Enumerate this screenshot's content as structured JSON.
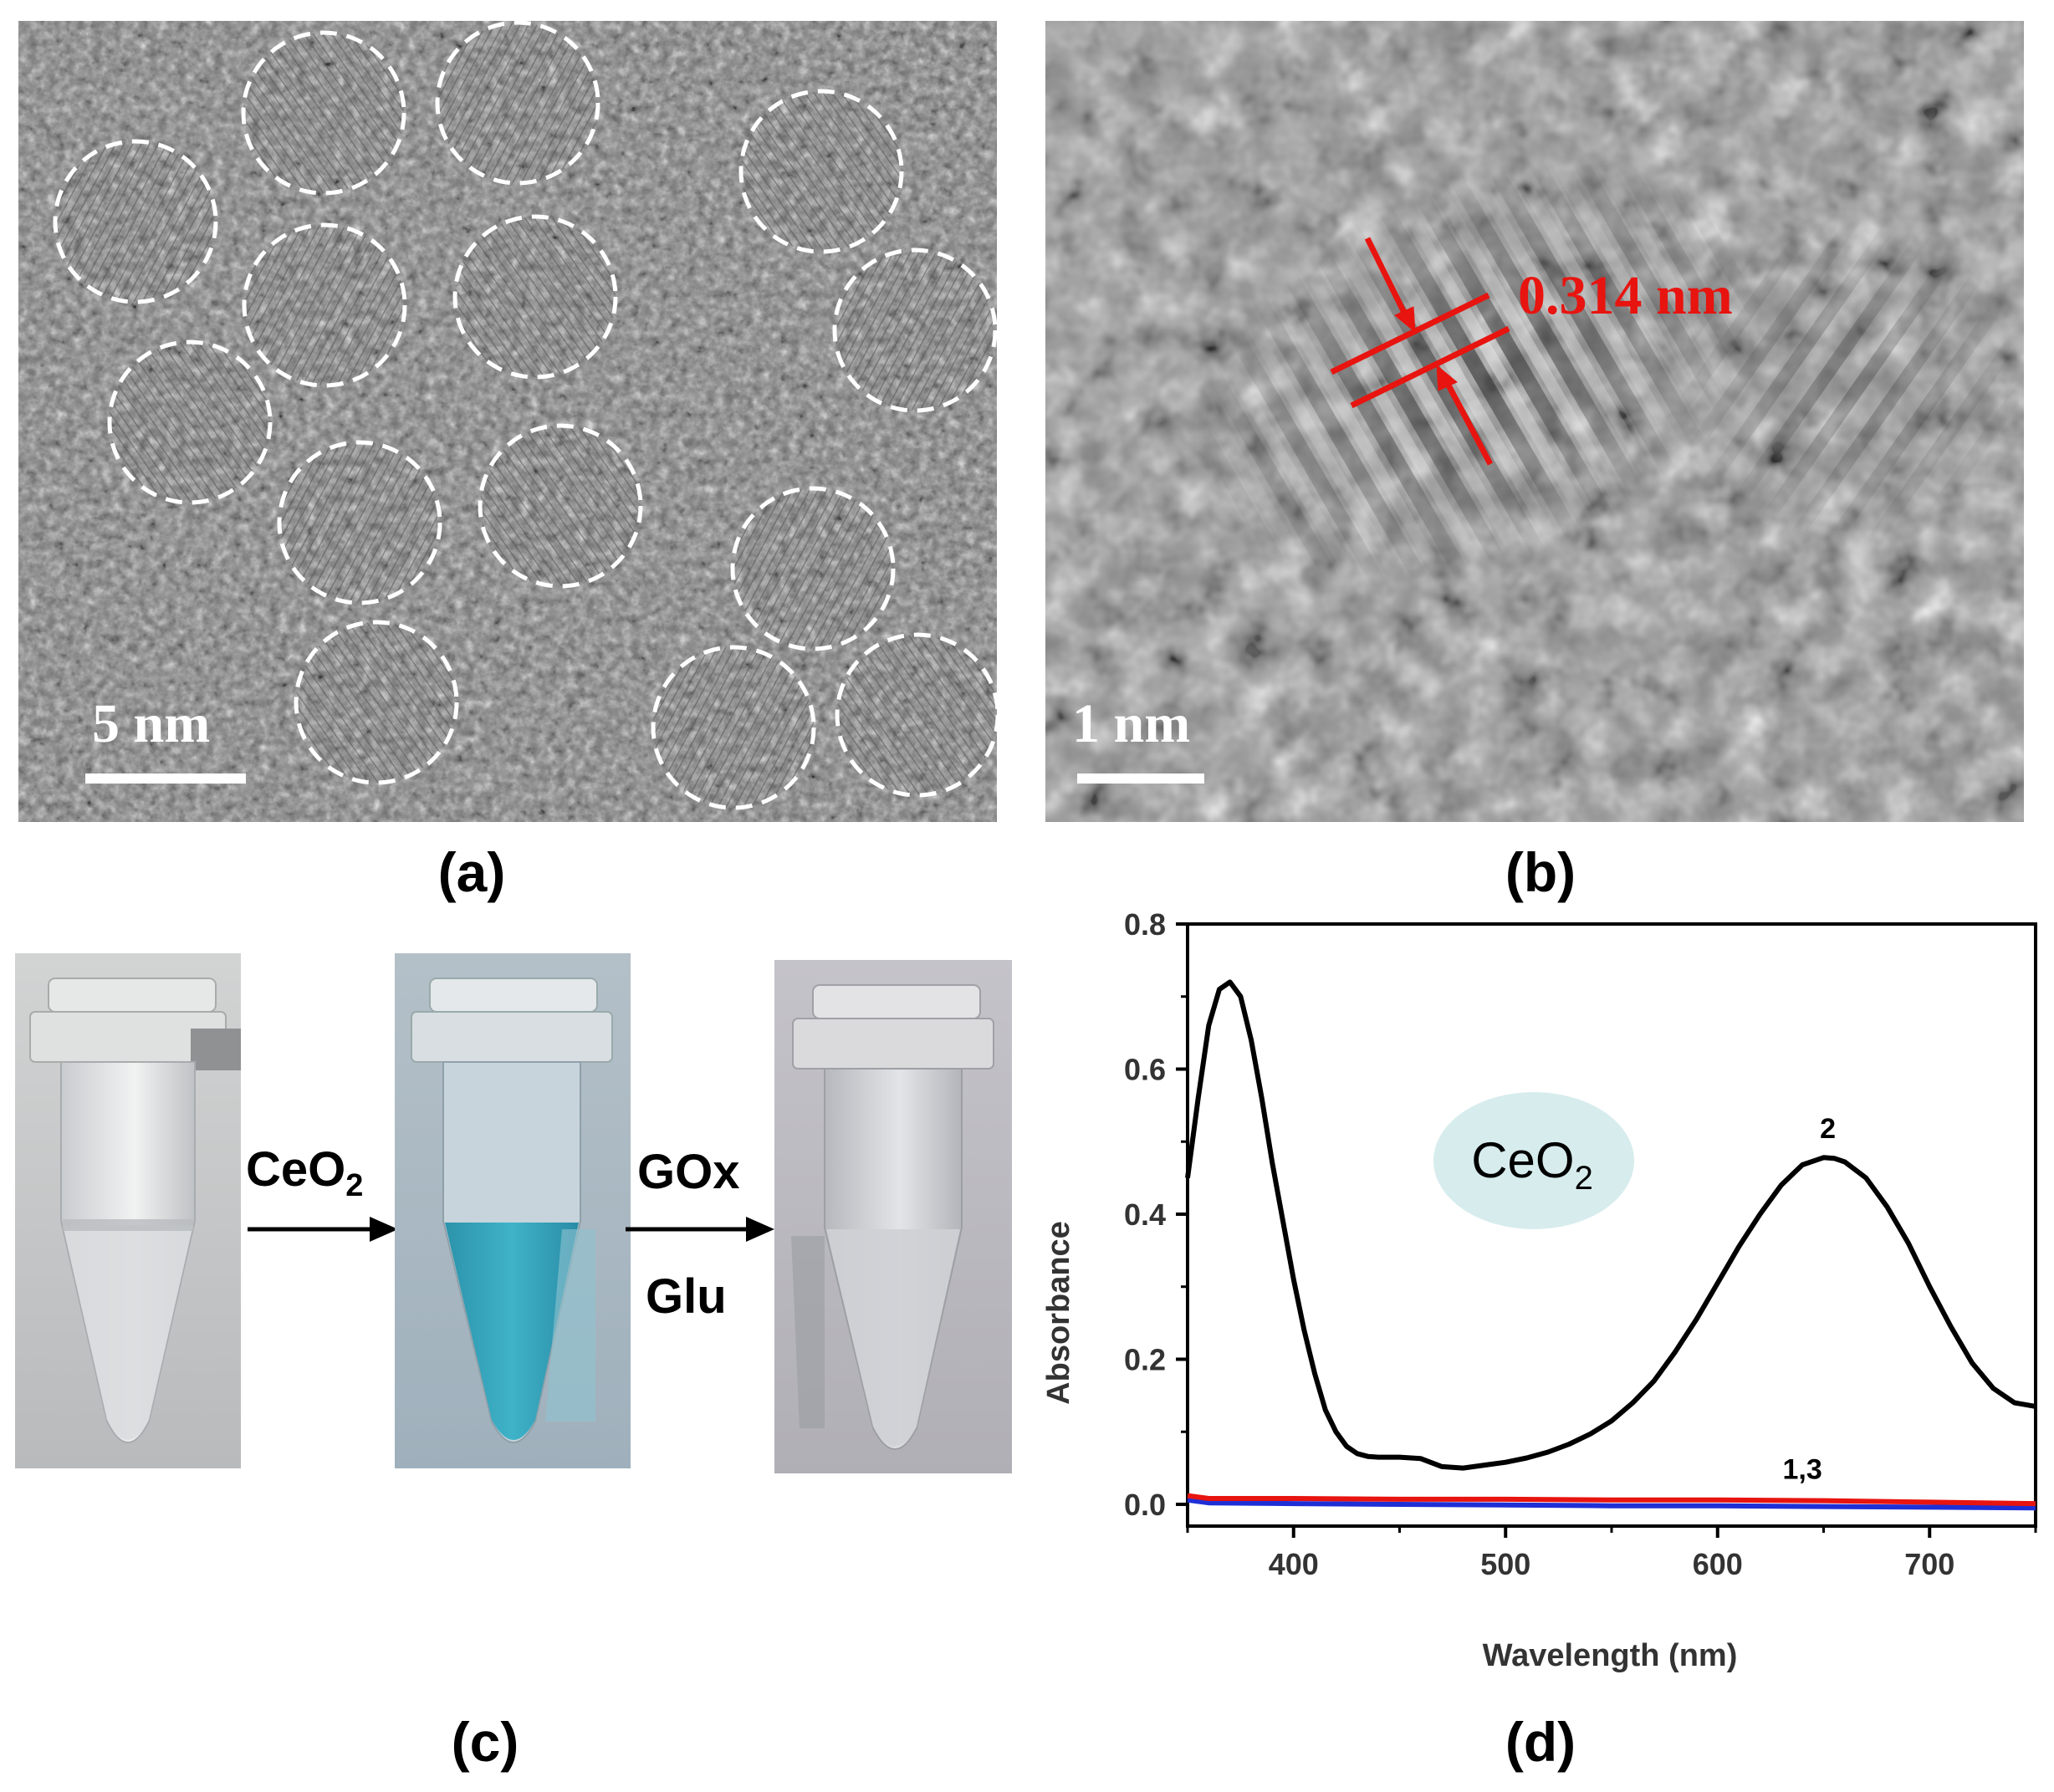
{
  "panels": {
    "a": {
      "caption": "(a)",
      "scale_bar_label": "5 nm",
      "highlighted_particles": 14
    },
    "b": {
      "caption": "(b)",
      "scale_bar_label": "1 nm",
      "lattice_spacing_label": "0.314 nm",
      "annotation_color": "#e8140f"
    },
    "c": {
      "caption": "(c)",
      "step1_reagent": "CeO",
      "step1_subscript": "2",
      "step2_reagent_top": "GOx",
      "step2_reagent_bottom": "Glu",
      "tube_colors": [
        "#c9cdd0",
        "#2fa3bd",
        "#c2c3c8"
      ]
    },
    "d": {
      "caption": "(d)",
      "badge_text": "CeO",
      "badge_subscript": "2",
      "badge_color": "#d7eced"
    }
  },
  "chart_data": {
    "type": "line",
    "xlabel": "Wavelength (nm)",
    "ylabel": "Absorbance",
    "xlim": [
      350,
      750
    ],
    "ylim": [
      -0.03,
      0.8
    ],
    "xticks": [
      400,
      500,
      600,
      700
    ],
    "yticks": [
      0.0,
      0.2,
      0.4,
      0.6,
      0.8
    ],
    "ytick_labels": [
      "0.0",
      "0.2",
      "0.4",
      "0.6",
      "0.8"
    ],
    "annotations": [
      {
        "text": "2",
        "x": 652,
        "y": 0.505
      },
      {
        "text": "1,3",
        "x": 640,
        "y": 0.035
      }
    ],
    "series": [
      {
        "color": "#000000",
        "x": [
          350,
          355,
          360,
          365,
          370,
          375,
          380,
          385,
          390,
          395,
          400,
          405,
          410,
          415,
          420,
          425,
          430,
          435,
          440,
          450,
          460,
          470,
          480,
          490,
          500,
          510,
          520,
          530,
          540,
          550,
          560,
          570,
          580,
          590,
          600,
          610,
          620,
          630,
          640,
          650,
          655,
          660,
          670,
          680,
          690,
          700,
          710,
          720,
          730,
          740,
          750
        ],
        "y": [
          0.45,
          0.56,
          0.66,
          0.71,
          0.72,
          0.7,
          0.64,
          0.56,
          0.47,
          0.39,
          0.31,
          0.24,
          0.18,
          0.13,
          0.1,
          0.08,
          0.07,
          0.066,
          0.065,
          0.065,
          0.063,
          0.052,
          0.05,
          0.054,
          0.058,
          0.064,
          0.072,
          0.083,
          0.097,
          0.115,
          0.14,
          0.17,
          0.21,
          0.255,
          0.305,
          0.355,
          0.4,
          0.44,
          0.468,
          0.478,
          0.477,
          0.472,
          0.45,
          0.41,
          0.36,
          0.3,
          0.245,
          0.195,
          0.16,
          0.14,
          0.135
        ]
      },
      {
        "color": "#e8140f",
        "x": [
          350,
          360,
          400,
          450,
          500,
          550,
          600,
          650,
          700,
          750
        ],
        "y": [
          0.012,
          0.008,
          0.008,
          0.007,
          0.007,
          0.006,
          0.006,
          0.005,
          0.003,
          0.001
        ]
      },
      {
        "color": "#1f2fd6",
        "x": [
          350,
          360,
          400,
          450,
          500,
          550,
          600,
          650,
          700,
          750
        ],
        "y": [
          0.006,
          0.002,
          0.001,
          0.0,
          -0.001,
          -0.002,
          -0.002,
          -0.003,
          -0.004,
          -0.005
        ]
      }
    ]
  }
}
